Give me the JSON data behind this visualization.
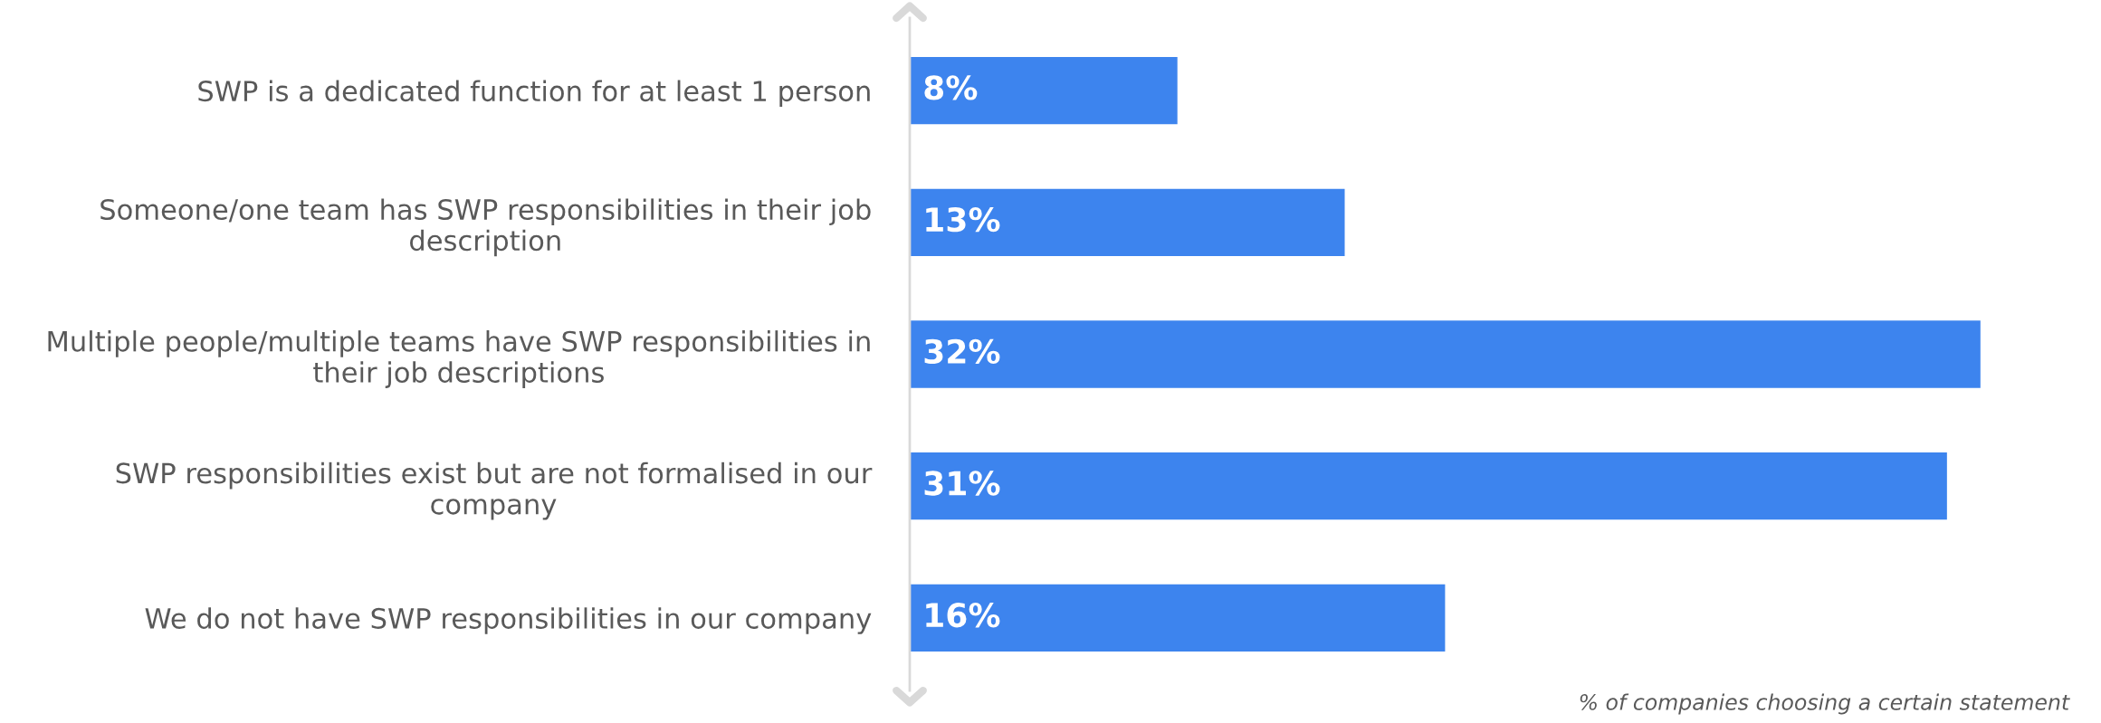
{
  "chart_data": {
    "type": "bar",
    "orientation": "horizontal",
    "categories": [
      "SWP is a dedicated function for at least 1 person",
      "Someone/one team has SWP responsibilities in their job\ndescription",
      "Multiple people/multiple teams have SWP responsibilities in\ntheir job descriptions",
      "SWP responsibilities exist but are not formalised in our\ncompany",
      "We do not have SWP responsibilities in our company"
    ],
    "values": [
      8,
      13,
      32,
      31,
      16
    ],
    "value_labels": [
      "8%",
      "13%",
      "32%",
      "31%",
      "16%"
    ],
    "color": "#3d84ee",
    "relative": false,
    "grid": false,
    "legend": false,
    "annotations": [
      "% of companies choosing a certain statement"
    ]
  }
}
